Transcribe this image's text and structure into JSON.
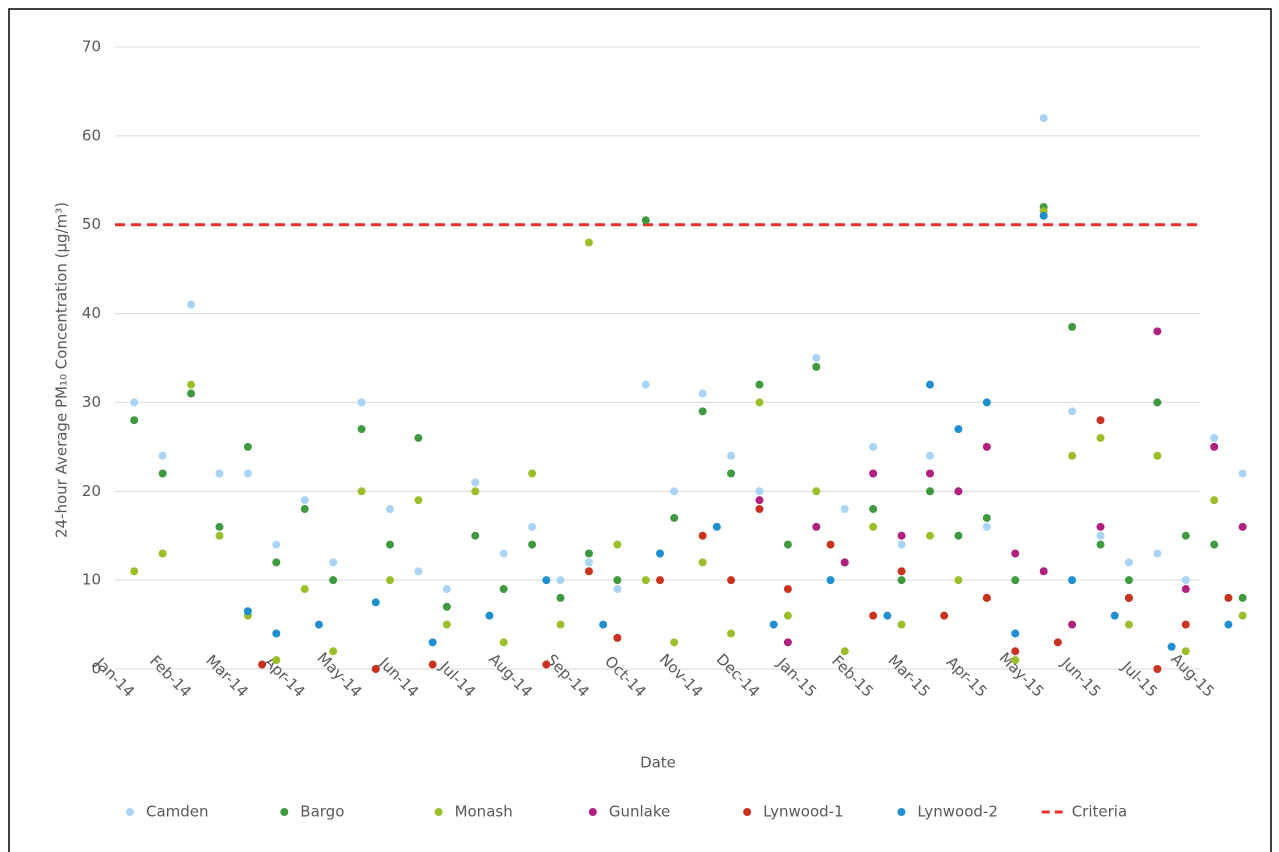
{
  "chart_data": {
    "type": "scatter",
    "y_label": "24-hour Average PM₁₀ Concentration (µg/m³)",
    "x_label": "Date",
    "categories": [
      "Jan-14",
      "Feb-14",
      "Mar-14",
      "Apr-14",
      "May-14",
      "Jun-14",
      "Jul-14",
      "Aug-14",
      "Sep-14",
      "Oct-14",
      "Nov-14",
      "Dec-14",
      "Jan-15",
      "Feb-15",
      "Mar-15",
      "Apr-15",
      "May-15",
      "Jun-15",
      "Jul-15",
      "Aug-15"
    ],
    "ylim": [
      0,
      70
    ],
    "yticks": [
      0,
      10,
      20,
      30,
      40,
      50,
      60,
      70
    ],
    "grid": true,
    "legend": "bottom",
    "reference_line": {
      "name": "Criteria",
      "value": 50,
      "color": "#e8312b"
    },
    "series": [
      {
        "name": "Camden",
        "color": "#a9d4f5",
        "x": [
          "Jan-14",
          "Jan-14",
          "Feb-14",
          "Feb-14",
          "Mar-14",
          "Mar-14",
          "Apr-14",
          "Apr-14",
          "May-14",
          "May-14",
          "Jun-14",
          "Jun-14",
          "Jul-14",
          "Jul-14",
          "Aug-14",
          "Aug-14",
          "Sep-14",
          "Sep-14",
          "Oct-14",
          "Oct-14",
          "Nov-14",
          "Nov-14",
          "Dec-14",
          "Dec-14",
          "Jan-15",
          "Jan-15",
          "Feb-15",
          "Feb-15",
          "Mar-15",
          "Mar-15",
          "Apr-15",
          "Apr-15",
          "May-15",
          "May-15",
          "Jun-15",
          "Jun-15",
          "Jul-15",
          "Jul-15",
          "Aug-15",
          "Aug-15"
        ],
        "values": [
          30,
          24,
          41,
          22,
          22,
          14,
          19,
          12,
          30,
          18,
          11,
          9,
          21,
          13,
          16,
          10,
          12,
          9,
          32,
          20,
          31,
          24,
          20,
          14,
          35,
          18,
          25,
          14,
          24,
          20,
          16,
          10,
          62,
          29,
          15,
          12,
          13,
          10,
          26,
          22
        ]
      },
      {
        "name": "Bargo",
        "color": "#3f9a3f",
        "x": [
          "Jan-14",
          "Jan-14",
          "Feb-14",
          "Feb-14",
          "Mar-14",
          "Mar-14",
          "Apr-14",
          "Apr-14",
          "May-14",
          "May-14",
          "Jun-14",
          "Jun-14",
          "Jul-14",
          "Jul-14",
          "Aug-14",
          "Aug-14",
          "Sep-14",
          "Sep-14",
          "Oct-14",
          "Oct-14",
          "Nov-14",
          "Nov-14",
          "Dec-14",
          "Dec-14",
          "Jan-15",
          "Jan-15",
          "Feb-15",
          "Feb-15",
          "Mar-15",
          "Mar-15",
          "Apr-15",
          "Apr-15",
          "May-15",
          "May-15",
          "Jun-15",
          "Jun-15",
          "Jul-15",
          "Jul-15",
          "Aug-15",
          "Aug-15"
        ],
        "values": [
          28,
          22,
          31,
          16,
          25,
          12,
          18,
          10,
          27,
          14,
          26,
          7,
          15,
          9,
          14,
          8,
          13,
          10,
          50.5,
          17,
          29,
          22,
          32,
          14,
          34,
          12,
          18,
          10,
          20,
          15,
          17,
          10,
          52,
          38.5,
          14,
          10,
          30,
          15,
          14,
          8
        ]
      },
      {
        "name": "Monash",
        "color": "#9bbf2a",
        "x": [
          "Jan-14",
          "Jan-14",
          "Feb-14",
          "Feb-14",
          "Mar-14",
          "Mar-14",
          "Apr-14",
          "Apr-14",
          "May-14",
          "May-14",
          "Jun-14",
          "Jun-14",
          "Jul-14",
          "Jul-14",
          "Aug-14",
          "Aug-14",
          "Sep-14",
          "Sep-14",
          "Oct-14",
          "Oct-14",
          "Nov-14",
          "Nov-14",
          "Dec-14",
          "Dec-14",
          "Jan-15",
          "Jan-15",
          "Feb-15",
          "Feb-15",
          "Mar-15",
          "Mar-15",
          "Apr-15",
          "Apr-15",
          "May-15",
          "May-15",
          "Jun-15",
          "Jun-15",
          "Jul-15",
          "Jul-15",
          "Aug-15",
          "Aug-15"
        ],
        "values": [
          11,
          13,
          32,
          15,
          6,
          1,
          9,
          2,
          20,
          10,
          19,
          5,
          20,
          3,
          22,
          5,
          48,
          14,
          10,
          3,
          12,
          4,
          30,
          6,
          20,
          2,
          16,
          5,
          15,
          10,
          8,
          1,
          51.5,
          24,
          26,
          5,
          24,
          2,
          19,
          6
        ]
      },
      {
        "name": "Gunlake",
        "color": "#b0207e",
        "x": [
          "Dec-14",
          "Dec-14",
          "Jan-15",
          "Jan-15",
          "Feb-15",
          "Feb-15",
          "Mar-15",
          "Mar-15",
          "Apr-15",
          "Apr-15",
          "May-15",
          "May-15",
          "Jun-15",
          "Jun-15",
          "Jul-15",
          "Jul-15",
          "Aug-15",
          "Aug-15"
        ],
        "values": [
          19,
          3,
          16,
          12,
          22,
          15,
          22,
          20,
          25,
          13,
          11,
          5,
          16,
          8,
          38,
          9,
          25,
          16
        ]
      },
      {
        "name": "Lynwood-1",
        "color": "#c8321e",
        "x": [
          "Mar-14",
          "May-14",
          "Jun-14",
          "Aug-14",
          "Sep-14",
          "Sep-14",
          "Oct-14",
          "Nov-14",
          "Nov-14",
          "Dec-14",
          "Dec-14",
          "Jan-15",
          "Feb-15",
          "Feb-15",
          "Mar-15",
          "Apr-15",
          "Apr-15",
          "May-15",
          "Jun-15",
          "Jun-15",
          "Jul-15",
          "Jul-15",
          "Aug-15"
        ],
        "values": [
          0.5,
          0,
          0.5,
          0.5,
          11,
          3.5,
          10,
          15,
          10,
          18,
          9,
          14,
          6,
          11,
          6,
          8,
          2,
          3,
          28,
          8,
          0,
          5,
          8
        ]
      },
      {
        "name": "Lynwood-2",
        "color": "#1f8fd0",
        "x": [
          "Mar-14",
          "Mar-14",
          "Apr-14",
          "May-14",
          "Jun-14",
          "Jul-14",
          "Aug-14",
          "Sep-14",
          "Oct-14",
          "Nov-14",
          "Dec-14",
          "Jan-15",
          "Feb-15",
          "Mar-15",
          "Mar-15",
          "Apr-15",
          "Apr-15",
          "May-15",
          "May-15",
          "Jun-15",
          "Jul-15",
          "Aug-15"
        ],
        "values": [
          6.5,
          4,
          5,
          7.5,
          3,
          6,
          10,
          5,
          13,
          16,
          5,
          10,
          6,
          32,
          27,
          30,
          4,
          51,
          10,
          6,
          2.5,
          5
        ]
      }
    ]
  }
}
